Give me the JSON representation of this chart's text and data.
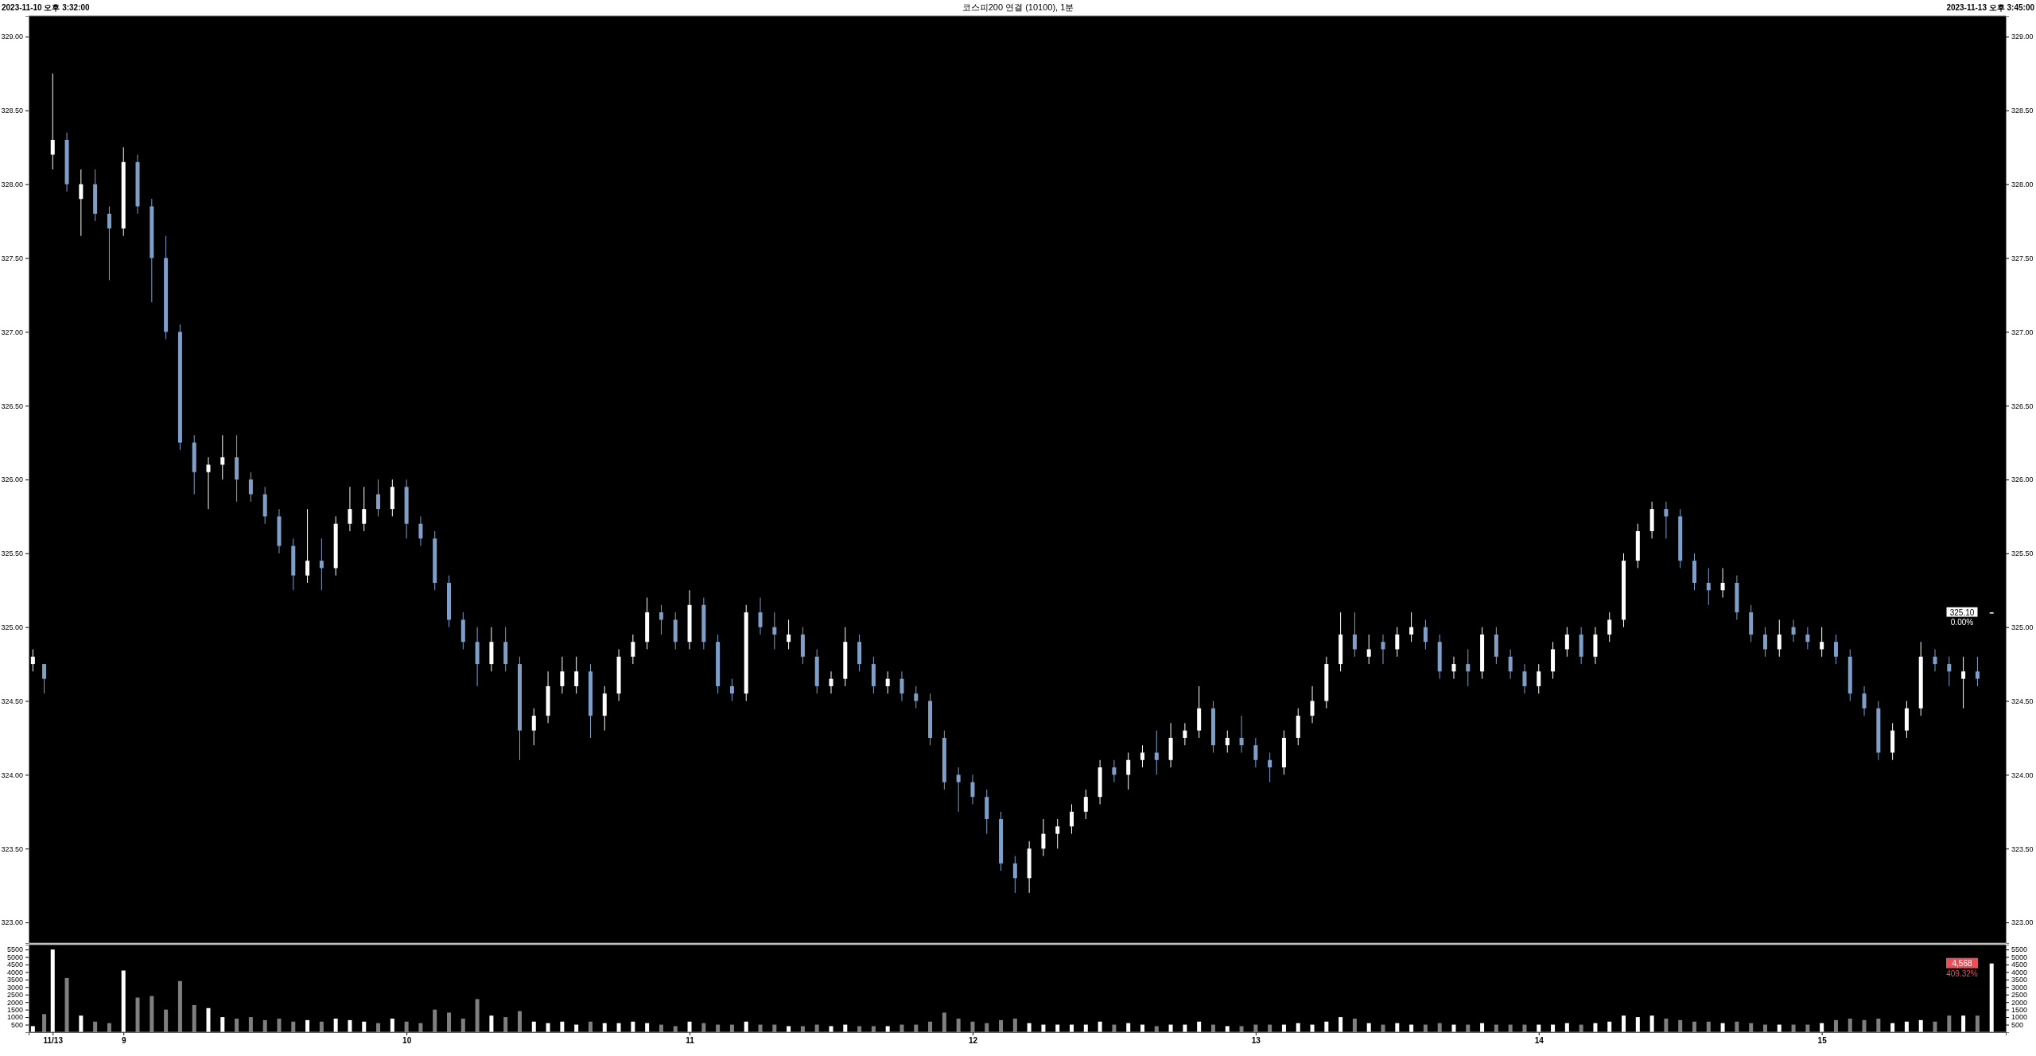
{
  "chart_data": [
    {
      "type": "candlestick",
      "title": "코스피200 연결 (10100), 1분",
      "annotations": [
        "2023-11-10 오후 3:32:00",
        "2023-11-13 오후 3:45:00",
        {
          "text": "325.10",
          "y": 325.1
        },
        "0.00%"
      ],
      "xlim": [
        8.665,
        15.65
      ],
      "ylim": [
        322.86,
        329.14
      ],
      "y2lim": [
        322.86,
        329.14
      ],
      "tick_labels": "y",
      "yticks": [
        {
          "value": 323,
          "label": "323.00"
        },
        {
          "value": 323.5,
          "label": "323.50"
        },
        {
          "value": 324,
          "label": "324.00"
        },
        {
          "value": 324.5,
          "label": "324.50"
        },
        {
          "value": 325,
          "label": "325.00"
        },
        {
          "value": 325.5,
          "label": "325.50"
        },
        {
          "value": 326,
          "label": "326.00"
        },
        {
          "value": 326.5,
          "label": "326.50"
        },
        {
          "value": 327,
          "label": "327.00"
        },
        {
          "value": 327.5,
          "label": "327.50"
        },
        {
          "value": 328,
          "label": "328.00"
        },
        {
          "value": 328.5,
          "label": "328.50"
        },
        {
          "value": 329,
          "label": "329.00"
        }
      ],
      "y2ticks": [
        {
          "value": 323,
          "label": "323.00"
        },
        {
          "value": 323.5,
          "label": "323.50"
        },
        {
          "value": 324,
          "label": "324.00"
        },
        {
          "value": 324.5,
          "label": "324.50"
        },
        {
          "value": 325,
          "label": "325.00"
        },
        {
          "value": 325.5,
          "label": "325.50"
        },
        {
          "value": 326,
          "label": "326.00"
        },
        {
          "value": 326.5,
          "label": "326.50"
        },
        {
          "value": 327,
          "label": "327.00"
        },
        {
          "value": 327.5,
          "label": "327.50"
        },
        {
          "value": 328,
          "label": "328.00"
        },
        {
          "value": 328.5,
          "label": "328.50"
        },
        {
          "value": 329,
          "label": "329.00"
        }
      ],
      "series": [
        {
          "color": "#ffffff",
          "x": [
            8.68,
            8.75,
            8.85,
            9.0,
            9.3,
            9.35,
            9.65,
            9.75,
            9.8,
            9.85,
            9.95,
            10.3,
            10.45,
            10.5,
            10.55,
            10.6,
            10.7,
            10.75,
            10.8,
            10.85,
            11.0,
            11.2,
            11.35,
            11.5,
            11.55,
            11.7,
            12.2,
            12.25,
            12.3,
            12.35,
            12.4,
            12.45,
            12.55,
            12.6,
            12.7,
            12.75,
            12.8,
            12.9,
            13.1,
            13.15,
            13.2,
            13.25,
            13.3,
            13.4,
            13.5,
            13.55,
            13.7,
            13.8,
            14.0,
            14.05,
            14.1,
            14.2,
            14.25,
            14.3,
            14.35,
            14.4,
            14.65,
            14.85,
            15.0,
            15.25,
            15.3,
            15.35,
            15.5,
            15.6
          ],
          "ohlc": [
            [
              324.75,
              324.85,
              324.7,
              324.8
            ],
            [
              328.2,
              328.75,
              328.1,
              328.3
            ],
            [
              327.9,
              328.1,
              327.65,
              328.0
            ],
            [
              327.7,
              328.25,
              327.65,
              328.15
            ],
            [
              326.05,
              326.15,
              325.8,
              326.1
            ],
            [
              326.1,
              326.3,
              326.0,
              326.15
            ],
            [
              325.35,
              325.8,
              325.3,
              325.45
            ],
            [
              325.4,
              325.75,
              325.35,
              325.7
            ],
            [
              325.7,
              325.95,
              325.65,
              325.8
            ],
            [
              325.7,
              325.95,
              325.65,
              325.8
            ],
            [
              325.8,
              326.0,
              325.75,
              325.95
            ],
            [
              324.75,
              325.0,
              324.7,
              324.9
            ],
            [
              324.3,
              324.45,
              324.2,
              324.4
            ],
            [
              324.4,
              324.7,
              324.35,
              324.6
            ],
            [
              324.6,
              324.8,
              324.55,
              324.7
            ],
            [
              324.6,
              324.8,
              324.55,
              324.7
            ],
            [
              324.4,
              324.6,
              324.3,
              324.55
            ],
            [
              324.55,
              324.85,
              324.5,
              324.8
            ],
            [
              324.8,
              324.95,
              324.75,
              324.9
            ],
            [
              324.9,
              325.2,
              324.85,
              325.1
            ],
            [
              324.9,
              325.25,
              324.85,
              325.15
            ],
            [
              324.55,
              325.15,
              324.5,
              325.1
            ],
            [
              324.9,
              325.05,
              324.85,
              324.95
            ],
            [
              324.6,
              324.7,
              324.55,
              324.65
            ],
            [
              324.65,
              325.0,
              324.6,
              324.9
            ],
            [
              324.6,
              324.7,
              324.55,
              324.65
            ],
            [
              323.3,
              323.55,
              323.2,
              323.5
            ],
            [
              323.5,
              323.7,
              323.45,
              323.6
            ],
            [
              323.6,
              323.7,
              323.5,
              323.65
            ],
            [
              323.65,
              323.8,
              323.6,
              323.75
            ],
            [
              323.75,
              323.9,
              323.7,
              323.85
            ],
            [
              323.85,
              324.1,
              323.8,
              324.05
            ],
            [
              324.0,
              324.15,
              323.9,
              324.1
            ],
            [
              324.1,
              324.2,
              324.05,
              324.15
            ],
            [
              324.1,
              324.35,
              324.05,
              324.25
            ],
            [
              324.25,
              324.35,
              324.2,
              324.3
            ],
            [
              324.3,
              324.6,
              324.25,
              324.45
            ],
            [
              324.2,
              324.3,
              324.15,
              324.25
            ],
            [
              324.05,
              324.3,
              324.0,
              324.25
            ],
            [
              324.25,
              324.45,
              324.2,
              324.4
            ],
            [
              324.4,
              324.6,
              324.35,
              324.5
            ],
            [
              324.5,
              324.8,
              324.45,
              324.75
            ],
            [
              324.75,
              325.1,
              324.7,
              324.95
            ],
            [
              324.8,
              324.95,
              324.75,
              324.85
            ],
            [
              324.85,
              325.0,
              324.8,
              324.95
            ],
            [
              324.95,
              325.1,
              324.9,
              325.0
            ],
            [
              324.7,
              324.8,
              324.65,
              324.75
            ],
            [
              324.7,
              325.0,
              324.65,
              324.95
            ],
            [
              324.6,
              324.75,
              324.55,
              324.7
            ],
            [
              324.7,
              324.9,
              324.65,
              324.85
            ],
            [
              324.85,
              325.0,
              324.8,
              324.95
            ],
            [
              324.8,
              325.0,
              324.75,
              324.95
            ],
            [
              324.95,
              325.1,
              324.9,
              325.05
            ],
            [
              325.05,
              325.5,
              325.0,
              325.45
            ],
            [
              325.45,
              325.7,
              325.4,
              325.65
            ],
            [
              325.65,
              325.85,
              325.6,
              325.8
            ],
            [
              325.25,
              325.4,
              325.2,
              325.3
            ],
            [
              324.85,
              325.05,
              324.8,
              324.95
            ],
            [
              324.85,
              325.0,
              324.8,
              324.9
            ],
            [
              324.15,
              324.35,
              324.1,
              324.3
            ],
            [
              324.3,
              324.5,
              324.25,
              324.45
            ],
            [
              324.45,
              324.9,
              324.4,
              324.8
            ],
            [
              324.65,
              324.8,
              324.45,
              324.7
            ],
            [
              325.1,
              325.1,
              325.1,
              325.1
            ]
          ]
        },
        {
          "color": "#7f9fc8",
          "x": [
            8.72,
            8.8,
            8.9,
            8.95,
            9.05,
            9.1,
            9.15,
            9.2,
            9.25,
            9.4,
            9.45,
            9.5,
            9.55,
            9.6,
            9.7,
            9.9,
            10.0,
            10.05,
            10.1,
            10.15,
            10.2,
            10.25,
            10.35,
            10.4,
            10.65,
            10.9,
            10.95,
            11.05,
            11.1,
            11.15,
            11.25,
            11.3,
            11.4,
            11.45,
            11.6,
            11.65,
            11.75,
            11.8,
            11.85,
            11.9,
            11.95,
            12.0,
            12.05,
            12.1,
            12.15,
            12.5,
            12.65,
            12.85,
            12.95,
            13.0,
            13.05,
            13.35,
            13.45,
            13.6,
            13.65,
            13.75,
            13.85,
            13.9,
            13.95,
            14.15,
            14.45,
            14.5,
            14.55,
            14.6,
            14.7,
            14.75,
            14.8,
            14.9,
            14.95,
            15.05,
            15.1,
            15.15,
            15.2,
            15.4,
            15.45,
            15.55
          ],
          "ohlc": [
            [
              324.75,
              324.75,
              324.55,
              324.65
            ],
            [
              328.3,
              328.35,
              327.95,
              328.0
            ],
            [
              328.0,
              328.1,
              327.75,
              327.8
            ],
            [
              327.8,
              327.85,
              327.35,
              327.7
            ],
            [
              328.15,
              328.2,
              327.8,
              327.85
            ],
            [
              327.85,
              327.9,
              327.2,
              327.5
            ],
            [
              327.5,
              327.65,
              326.95,
              327.0
            ],
            [
              327.0,
              327.05,
              326.2,
              326.25
            ],
            [
              326.25,
              326.3,
              325.9,
              326.05
            ],
            [
              326.15,
              326.3,
              325.85,
              326.0
            ],
            [
              326.0,
              326.05,
              325.85,
              325.9
            ],
            [
              325.9,
              325.95,
              325.7,
              325.75
            ],
            [
              325.75,
              325.8,
              325.5,
              325.55
            ],
            [
              325.55,
              325.6,
              325.25,
              325.35
            ],
            [
              325.45,
              325.6,
              325.25,
              325.4
            ],
            [
              325.9,
              326.0,
              325.75,
              325.8
            ],
            [
              325.95,
              326.0,
              325.6,
              325.7
            ],
            [
              325.7,
              325.75,
              325.55,
              325.6
            ],
            [
              325.6,
              325.65,
              325.25,
              325.3
            ],
            [
              325.3,
              325.35,
              325.0,
              325.05
            ],
            [
              325.05,
              325.1,
              324.85,
              324.9
            ],
            [
              324.9,
              325.0,
              324.6,
              324.75
            ],
            [
              324.9,
              325.0,
              324.7,
              324.75
            ],
            [
              324.75,
              324.8,
              324.1,
              324.3
            ],
            [
              324.7,
              324.75,
              324.25,
              324.4
            ],
            [
              325.1,
              325.15,
              324.95,
              325.05
            ],
            [
              325.05,
              325.1,
              324.85,
              324.9
            ],
            [
              325.15,
              325.2,
              324.85,
              324.9
            ],
            [
              324.9,
              324.95,
              324.55,
              324.6
            ],
            [
              324.6,
              324.65,
              324.5,
              324.55
            ],
            [
              325.1,
              325.2,
              324.95,
              325.0
            ],
            [
              325.0,
              325.1,
              324.85,
              324.95
            ],
            [
              324.95,
              325.0,
              324.75,
              324.8
            ],
            [
              324.8,
              324.85,
              324.55,
              324.6
            ],
            [
              324.9,
              324.95,
              324.7,
              324.75
            ],
            [
              324.75,
              324.8,
              324.55,
              324.6
            ],
            [
              324.65,
              324.7,
              324.5,
              324.55
            ],
            [
              324.55,
              324.6,
              324.45,
              324.5
            ],
            [
              324.5,
              324.55,
              324.2,
              324.25
            ],
            [
              324.25,
              324.3,
              323.9,
              323.95
            ],
            [
              324.0,
              324.05,
              323.75,
              323.95
            ],
            [
              323.95,
              324.0,
              323.8,
              323.85
            ],
            [
              323.85,
              323.9,
              323.6,
              323.7
            ],
            [
              323.7,
              323.75,
              323.35,
              323.4
            ],
            [
              323.4,
              323.45,
              323.2,
              323.3
            ],
            [
              324.05,
              324.1,
              323.95,
              324.0
            ],
            [
              324.15,
              324.3,
              324.0,
              324.1
            ],
            [
              324.45,
              324.5,
              324.15,
              324.2
            ],
            [
              324.25,
              324.4,
              324.15,
              324.2
            ],
            [
              324.2,
              324.25,
              324.05,
              324.1
            ],
            [
              324.1,
              324.15,
              323.95,
              324.05
            ],
            [
              324.95,
              325.1,
              324.8,
              324.85
            ],
            [
              324.9,
              324.95,
              324.75,
              324.85
            ],
            [
              325.0,
              325.05,
              324.85,
              324.9
            ],
            [
              324.9,
              324.95,
              324.65,
              324.7
            ],
            [
              324.75,
              324.85,
              324.6,
              324.7
            ],
            [
              324.95,
              325.0,
              324.75,
              324.8
            ],
            [
              324.8,
              324.85,
              324.65,
              324.7
            ],
            [
              324.7,
              324.75,
              324.55,
              324.6
            ],
            [
              324.95,
              325.0,
              324.75,
              324.8
            ],
            [
              325.8,
              325.85,
              325.6,
              325.75
            ],
            [
              325.75,
              325.8,
              325.4,
              325.45
            ],
            [
              325.45,
              325.5,
              325.25,
              325.3
            ],
            [
              325.3,
              325.4,
              325.15,
              325.25
            ],
            [
              325.3,
              325.35,
              325.05,
              325.1
            ],
            [
              325.1,
              325.15,
              324.9,
              324.95
            ],
            [
              324.95,
              325.0,
              324.8,
              324.85
            ],
            [
              325.0,
              325.05,
              324.9,
              324.95
            ],
            [
              324.95,
              325.0,
              324.85,
              324.9
            ],
            [
              324.9,
              324.95,
              324.75,
              324.8
            ],
            [
              324.8,
              324.85,
              324.5,
              324.55
            ],
            [
              324.55,
              324.6,
              324.4,
              324.45
            ],
            [
              324.45,
              324.5,
              324.1,
              324.15
            ],
            [
              324.8,
              324.85,
              324.7,
              324.75
            ],
            [
              324.75,
              324.8,
              324.6,
              324.7
            ],
            [
              324.7,
              324.8,
              324.6,
              324.65
            ]
          ]
        }
      ]
    },
    {
      "type": "bar",
      "annotations": [
        {
          "text": "4,568",
          "y": 4568
        },
        "409.32%"
      ],
      "xlim": [
        8.665,
        15.65
      ],
      "ylim": [
        0,
        5820
      ],
      "y2lim": [
        0,
        5820
      ],
      "xticks": [
        {
          "value": 8.75,
          "label": "11/13"
        },
        9,
        10,
        11,
        12,
        13,
        14,
        15
      ],
      "yticks": [
        500,
        1000,
        1500,
        2000,
        2500,
        3000,
        3500,
        4000,
        4500,
        5000,
        5500
      ],
      "y2ticks": [
        500,
        1000,
        1500,
        2000,
        2500,
        3000,
        3500,
        4000,
        4500,
        5000,
        5500
      ],
      "series": [
        {
          "color": "#ffffff",
          "x": [
            8.68,
            8.75,
            8.85,
            9.0,
            9.3,
            9.35,
            9.65,
            9.75,
            9.8,
            9.85,
            9.95,
            10.3,
            10.45,
            10.5,
            10.55,
            10.6,
            10.7,
            10.75,
            10.8,
            10.85,
            11.0,
            11.2,
            11.35,
            11.5,
            11.55,
            11.7,
            12.2,
            12.25,
            12.3,
            12.35,
            12.4,
            12.45,
            12.55,
            12.6,
            12.7,
            12.75,
            12.8,
            12.9,
            13.1,
            13.15,
            13.2,
            13.25,
            13.3,
            13.4,
            13.5,
            13.55,
            13.7,
            13.8,
            14.0,
            14.05,
            14.1,
            14.2,
            14.25,
            14.3,
            14.35,
            14.4,
            14.65,
            14.85,
            15.0,
            15.25,
            15.3,
            15.35,
            15.5,
            15.6
          ],
          "values": [
            400,
            5500,
            1100,
            4100,
            1600,
            1000,
            800,
            900,
            800,
            700,
            900,
            1100,
            700,
            600,
            700,
            500,
            600,
            600,
            700,
            600,
            700,
            700,
            400,
            400,
            500,
            400,
            600,
            500,
            500,
            500,
            500,
            700,
            600,
            500,
            500,
            500,
            700,
            400,
            500,
            600,
            500,
            700,
            1000,
            600,
            600,
            500,
            500,
            600,
            500,
            500,
            600,
            600,
            700,
            1100,
            1000,
            1100,
            600,
            500,
            600,
            600,
            700,
            800,
            1100,
            4568
          ]
        },
        {
          "color": "#808080",
          "x": [
            8.72,
            8.8,
            8.9,
            8.95,
            9.05,
            9.1,
            9.15,
            9.2,
            9.25,
            9.4,
            9.45,
            9.5,
            9.55,
            9.6,
            9.7,
            9.9,
            10.0,
            10.05,
            10.1,
            10.15,
            10.2,
            10.25,
            10.35,
            10.4,
            10.65,
            10.9,
            10.95,
            11.05,
            11.1,
            11.15,
            11.25,
            11.3,
            11.4,
            11.45,
            11.6,
            11.65,
            11.75,
            11.8,
            11.85,
            11.9,
            11.95,
            12.0,
            12.05,
            12.1,
            12.15,
            12.5,
            12.65,
            12.85,
            12.95,
            13.0,
            13.05,
            13.35,
            13.45,
            13.6,
            13.65,
            13.75,
            13.85,
            13.9,
            13.95,
            14.15,
            14.45,
            14.5,
            14.55,
            14.6,
            14.7,
            14.75,
            14.8,
            14.9,
            14.95,
            15.05,
            15.1,
            15.15,
            15.2,
            15.4,
            15.45,
            15.55
          ],
          "values": [
            1200,
            3600,
            700,
            600,
            2300,
            2400,
            1500,
            3400,
            1800,
            900,
            1000,
            800,
            900,
            700,
            700,
            600,
            700,
            600,
            1500,
            1300,
            900,
            2200,
            1000,
            1400,
            700,
            500,
            400,
            600,
            500,
            500,
            500,
            500,
            400,
            500,
            400,
            400,
            500,
            500,
            700,
            1300,
            900,
            700,
            600,
            800,
            900,
            500,
            400,
            500,
            400,
            500,
            500,
            900,
            500,
            500,
            600,
            500,
            500,
            500,
            500,
            500,
            900,
            800,
            700,
            700,
            700,
            600,
            500,
            500,
            500,
            800,
            900,
            800,
            900,
            700,
            1100,
            1100
          ]
        }
      ]
    }
  ]
}
